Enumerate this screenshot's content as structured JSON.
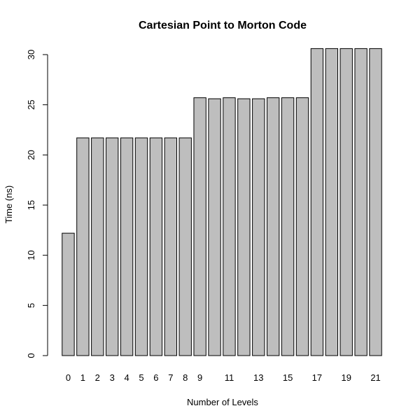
{
  "chart_data": {
    "type": "bar",
    "title": "Cartesian Point to Morton Code",
    "xlabel": "Number of Levels",
    "ylabel": "Time (ns)",
    "categories": [
      "0",
      "1",
      "2",
      "3",
      "4",
      "5",
      "6",
      "7",
      "8",
      "9",
      "10",
      "11",
      "12",
      "13",
      "14",
      "15",
      "16",
      "17",
      "18",
      "19",
      "20",
      "21"
    ],
    "x_tick_labels_shown": [
      "0",
      "1",
      "2",
      "3",
      "4",
      "5",
      "6",
      "7",
      "8",
      "9",
      "11",
      "13",
      "15",
      "17",
      "19",
      "21"
    ],
    "values": [
      12.2,
      21.7,
      21.7,
      21.7,
      21.7,
      21.7,
      21.7,
      21.7,
      21.7,
      25.7,
      25.6,
      25.7,
      25.6,
      25.6,
      25.7,
      25.7,
      25.7,
      30.6,
      30.6,
      30.6,
      30.6,
      30.6
    ],
    "ylim": [
      0,
      30
    ],
    "y_ticks": [
      0,
      5,
      10,
      15,
      20,
      25,
      30
    ],
    "grid": false,
    "colors": {
      "bar_fill": "#bebebe",
      "bar_stroke": "#000000"
    }
  }
}
